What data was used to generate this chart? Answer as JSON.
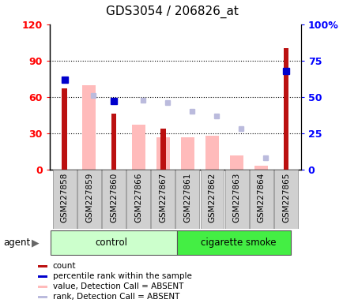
{
  "title": "GDS3054 / 206826_at",
  "samples": [
    "GSM227858",
    "GSM227859",
    "GSM227860",
    "GSM227866",
    "GSM227867",
    "GSM227861",
    "GSM227862",
    "GSM227863",
    "GSM227864",
    "GSM227865"
  ],
  "count_values": [
    67,
    null,
    46,
    null,
    34,
    null,
    null,
    null,
    null,
    100
  ],
  "rank_values": [
    62,
    null,
    47,
    null,
    null,
    null,
    null,
    null,
    null,
    68
  ],
  "absent_value_values": [
    null,
    70,
    null,
    37,
    27,
    27,
    28,
    12,
    3,
    null
  ],
  "absent_rank_values": [
    null,
    51,
    null,
    48,
    46,
    40,
    37,
    28,
    8,
    null
  ],
  "left_ylim": [
    0,
    120
  ],
  "right_ylim": [
    0,
    100
  ],
  "left_yticks": [
    0,
    30,
    60,
    90,
    120
  ],
  "right_yticks": [
    0,
    25,
    50,
    75,
    100
  ],
  "right_yticklabels": [
    "0",
    "25",
    "50",
    "75",
    "100%"
  ],
  "left_yticklabels": [
    "0",
    "30",
    "60",
    "90",
    "120"
  ],
  "grid_values": [
    30,
    60,
    90
  ],
  "count_color": "#bb1111",
  "rank_color": "#0000cc",
  "absent_value_color": "#ffbbbb",
  "absent_rank_color": "#bbbbdd",
  "control_bg": "#ccffcc",
  "smoke_bg": "#44ee44",
  "sample_box_color": "#d0d0d0",
  "legend_items": [
    {
      "label": "count",
      "color": "#bb1111"
    },
    {
      "label": "percentile rank within the sample",
      "color": "#0000cc"
    },
    {
      "label": "value, Detection Call = ABSENT",
      "color": "#ffbbbb"
    },
    {
      "label": "rank, Detection Call = ABSENT",
      "color": "#bbbbdd"
    }
  ]
}
